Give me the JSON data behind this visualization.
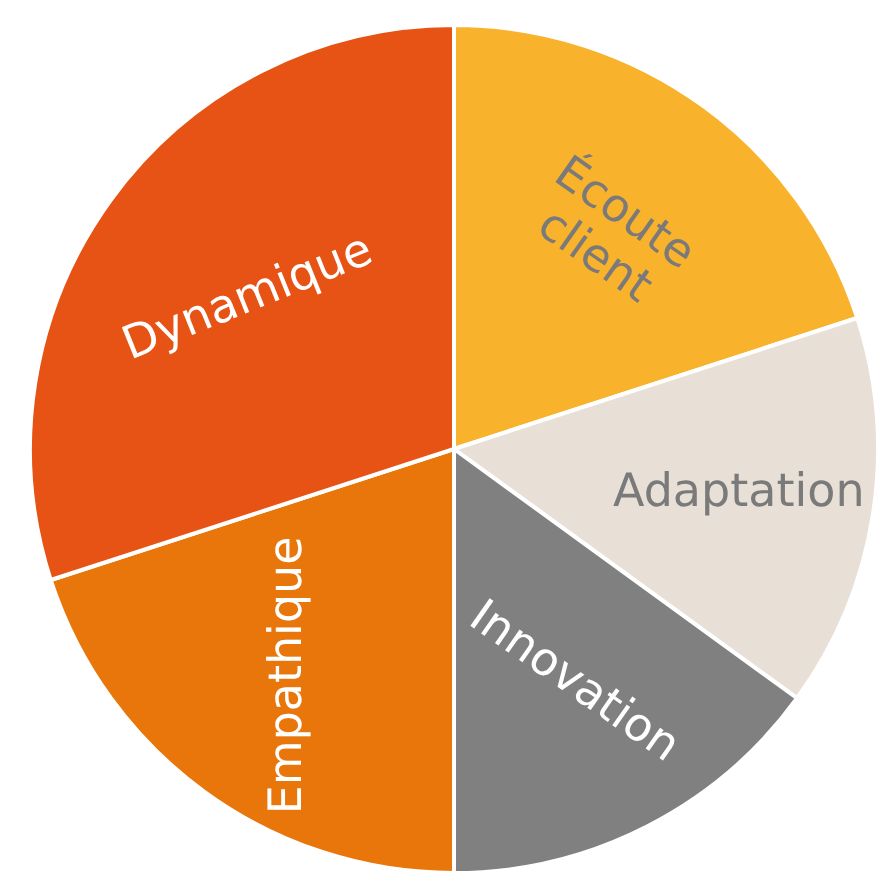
{
  "chart_data": {
    "type": "pie",
    "categories": [
      "Écoute client",
      "Adaptation",
      "Innovation",
      "Empathique",
      "Dynamique"
    ],
    "values": [
      20,
      15,
      15,
      20,
      30
    ],
    "colors": [
      "#f9b22b",
      "#e8e0d7",
      "#808080",
      "#e8760a",
      "#e65314"
    ]
  }
}
